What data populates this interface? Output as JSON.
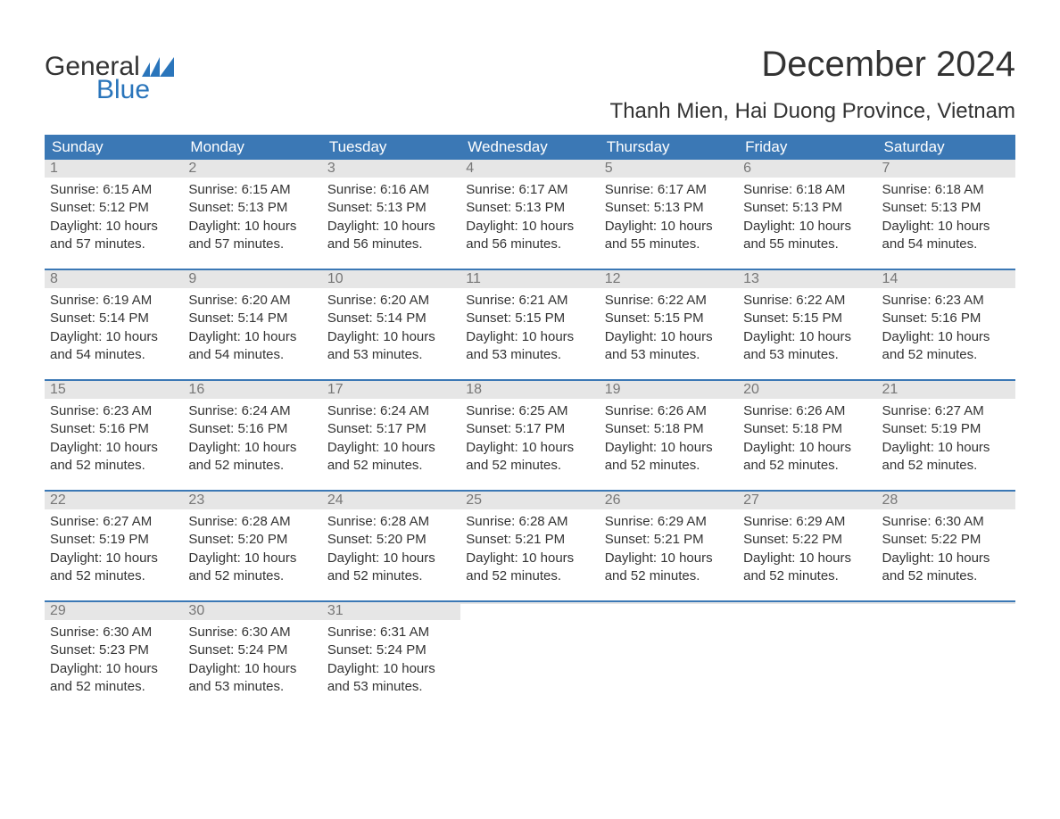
{
  "logo": {
    "general": "General",
    "blue": "Blue",
    "flag_color": "#2a75bb"
  },
  "title": "December 2024",
  "location": "Thanh Mien, Hai Duong Province, Vietnam",
  "colors": {
    "header_bg": "#3b78b5",
    "header_text": "#ffffff",
    "daynum_bg": "#e6e6e6",
    "daynum_text": "#777777",
    "body_text": "#333333",
    "week_border": "#3b78b5",
    "brand_blue": "#2a75bb",
    "page_bg": "#ffffff"
  },
  "fonts": {
    "family": "Arial",
    "month_title_size": 40,
    "location_size": 24,
    "dayhead_size": 17,
    "daynum_size": 16,
    "cell_size": 15
  },
  "day_headers": [
    "Sunday",
    "Monday",
    "Tuesday",
    "Wednesday",
    "Thursday",
    "Friday",
    "Saturday"
  ],
  "weeks": [
    [
      {
        "n": "1",
        "sr": "Sunrise: 6:15 AM",
        "ss": "Sunset: 5:12 PM",
        "d1": "Daylight: 10 hours",
        "d2": "and 57 minutes."
      },
      {
        "n": "2",
        "sr": "Sunrise: 6:15 AM",
        "ss": "Sunset: 5:13 PM",
        "d1": "Daylight: 10 hours",
        "d2": "and 57 minutes."
      },
      {
        "n": "3",
        "sr": "Sunrise: 6:16 AM",
        "ss": "Sunset: 5:13 PM",
        "d1": "Daylight: 10 hours",
        "d2": "and 56 minutes."
      },
      {
        "n": "4",
        "sr": "Sunrise: 6:17 AM",
        "ss": "Sunset: 5:13 PM",
        "d1": "Daylight: 10 hours",
        "d2": "and 56 minutes."
      },
      {
        "n": "5",
        "sr": "Sunrise: 6:17 AM",
        "ss": "Sunset: 5:13 PM",
        "d1": "Daylight: 10 hours",
        "d2": "and 55 minutes."
      },
      {
        "n": "6",
        "sr": "Sunrise: 6:18 AM",
        "ss": "Sunset: 5:13 PM",
        "d1": "Daylight: 10 hours",
        "d2": "and 55 minutes."
      },
      {
        "n": "7",
        "sr": "Sunrise: 6:18 AM",
        "ss": "Sunset: 5:13 PM",
        "d1": "Daylight: 10 hours",
        "d2": "and 54 minutes."
      }
    ],
    [
      {
        "n": "8",
        "sr": "Sunrise: 6:19 AM",
        "ss": "Sunset: 5:14 PM",
        "d1": "Daylight: 10 hours",
        "d2": "and 54 minutes."
      },
      {
        "n": "9",
        "sr": "Sunrise: 6:20 AM",
        "ss": "Sunset: 5:14 PM",
        "d1": "Daylight: 10 hours",
        "d2": "and 54 minutes."
      },
      {
        "n": "10",
        "sr": "Sunrise: 6:20 AM",
        "ss": "Sunset: 5:14 PM",
        "d1": "Daylight: 10 hours",
        "d2": "and 53 minutes."
      },
      {
        "n": "11",
        "sr": "Sunrise: 6:21 AM",
        "ss": "Sunset: 5:15 PM",
        "d1": "Daylight: 10 hours",
        "d2": "and 53 minutes."
      },
      {
        "n": "12",
        "sr": "Sunrise: 6:22 AM",
        "ss": "Sunset: 5:15 PM",
        "d1": "Daylight: 10 hours",
        "d2": "and 53 minutes."
      },
      {
        "n": "13",
        "sr": "Sunrise: 6:22 AM",
        "ss": "Sunset: 5:15 PM",
        "d1": "Daylight: 10 hours",
        "d2": "and 53 minutes."
      },
      {
        "n": "14",
        "sr": "Sunrise: 6:23 AM",
        "ss": "Sunset: 5:16 PM",
        "d1": "Daylight: 10 hours",
        "d2": "and 52 minutes."
      }
    ],
    [
      {
        "n": "15",
        "sr": "Sunrise: 6:23 AM",
        "ss": "Sunset: 5:16 PM",
        "d1": "Daylight: 10 hours",
        "d2": "and 52 minutes."
      },
      {
        "n": "16",
        "sr": "Sunrise: 6:24 AM",
        "ss": "Sunset: 5:16 PM",
        "d1": "Daylight: 10 hours",
        "d2": "and 52 minutes."
      },
      {
        "n": "17",
        "sr": "Sunrise: 6:24 AM",
        "ss": "Sunset: 5:17 PM",
        "d1": "Daylight: 10 hours",
        "d2": "and 52 minutes."
      },
      {
        "n": "18",
        "sr": "Sunrise: 6:25 AM",
        "ss": "Sunset: 5:17 PM",
        "d1": "Daylight: 10 hours",
        "d2": "and 52 minutes."
      },
      {
        "n": "19",
        "sr": "Sunrise: 6:26 AM",
        "ss": "Sunset: 5:18 PM",
        "d1": "Daylight: 10 hours",
        "d2": "and 52 minutes."
      },
      {
        "n": "20",
        "sr": "Sunrise: 6:26 AM",
        "ss": "Sunset: 5:18 PM",
        "d1": "Daylight: 10 hours",
        "d2": "and 52 minutes."
      },
      {
        "n": "21",
        "sr": "Sunrise: 6:27 AM",
        "ss": "Sunset: 5:19 PM",
        "d1": "Daylight: 10 hours",
        "d2": "and 52 minutes."
      }
    ],
    [
      {
        "n": "22",
        "sr": "Sunrise: 6:27 AM",
        "ss": "Sunset: 5:19 PM",
        "d1": "Daylight: 10 hours",
        "d2": "and 52 minutes."
      },
      {
        "n": "23",
        "sr": "Sunrise: 6:28 AM",
        "ss": "Sunset: 5:20 PM",
        "d1": "Daylight: 10 hours",
        "d2": "and 52 minutes."
      },
      {
        "n": "24",
        "sr": "Sunrise: 6:28 AM",
        "ss": "Sunset: 5:20 PM",
        "d1": "Daylight: 10 hours",
        "d2": "and 52 minutes."
      },
      {
        "n": "25",
        "sr": "Sunrise: 6:28 AM",
        "ss": "Sunset: 5:21 PM",
        "d1": "Daylight: 10 hours",
        "d2": "and 52 minutes."
      },
      {
        "n": "26",
        "sr": "Sunrise: 6:29 AM",
        "ss": "Sunset: 5:21 PM",
        "d1": "Daylight: 10 hours",
        "d2": "and 52 minutes."
      },
      {
        "n": "27",
        "sr": "Sunrise: 6:29 AM",
        "ss": "Sunset: 5:22 PM",
        "d1": "Daylight: 10 hours",
        "d2": "and 52 minutes."
      },
      {
        "n": "28",
        "sr": "Sunrise: 6:30 AM",
        "ss": "Sunset: 5:22 PM",
        "d1": "Daylight: 10 hours",
        "d2": "and 52 minutes."
      }
    ],
    [
      {
        "n": "29",
        "sr": "Sunrise: 6:30 AM",
        "ss": "Sunset: 5:23 PM",
        "d1": "Daylight: 10 hours",
        "d2": "and 52 minutes."
      },
      {
        "n": "30",
        "sr": "Sunrise: 6:30 AM",
        "ss": "Sunset: 5:24 PM",
        "d1": "Daylight: 10 hours",
        "d2": "and 53 minutes."
      },
      {
        "n": "31",
        "sr": "Sunrise: 6:31 AM",
        "ss": "Sunset: 5:24 PM",
        "d1": "Daylight: 10 hours",
        "d2": "and 53 minutes."
      },
      {
        "empty": true
      },
      {
        "empty": true
      },
      {
        "empty": true
      },
      {
        "empty": true
      }
    ]
  ]
}
